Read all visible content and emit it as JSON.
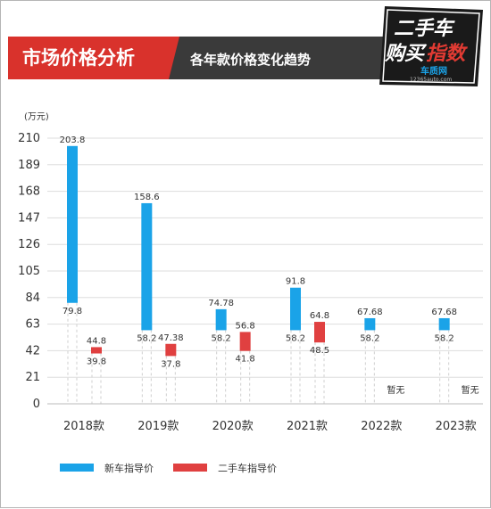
{
  "header": {
    "badge_title": "市场价格分析",
    "subtitle": "各年款价格变化趋势",
    "logo_line1": "二手车",
    "logo_line2a": "购买",
    "logo_line2b": "指数",
    "logo_site": "车质网",
    "logo_url": "12365auto.com"
  },
  "colors": {
    "header_bg": "#3a3a3a",
    "badge_red": "#d9322c",
    "new_car": "#1aa3e8",
    "used_car": "#e04040",
    "grid": "#dddddd"
  },
  "chart_data": {
    "type": "bar",
    "unit_label": "(万元)",
    "categories": [
      "2018款",
      "2019款",
      "2020款",
      "2021款",
      "2022款",
      "2023款"
    ],
    "yticks": [
      "0",
      "21",
      "42",
      "63",
      "84",
      "105",
      "126",
      "147",
      "168",
      "189",
      "210"
    ],
    "ylim": [
      0,
      210
    ],
    "series": [
      {
        "name": "新车指导价",
        "color": "#1aa3e8",
        "ranges": [
          [
            79.8,
            203.8
          ],
          [
            58.2,
            158.6
          ],
          [
            58.2,
            74.78
          ],
          [
            58.2,
            91.8
          ],
          [
            58.2,
            67.68
          ],
          [
            58.2,
            67.68
          ]
        ],
        "high_labels": [
          "203.8",
          "158.6",
          "74.78",
          "91.8",
          "67.68",
          "67.68"
        ],
        "low_labels": [
          "79.8",
          "58.2",
          "58.2",
          "58.2",
          "58.2",
          "58.2"
        ]
      },
      {
        "name": "二手车指导价",
        "color": "#e04040",
        "ranges": [
          [
            39.8,
            44.8
          ],
          [
            37.8,
            47.38
          ],
          [
            41.8,
            56.8
          ],
          [
            48.5,
            64.8
          ],
          null,
          null
        ],
        "high_labels": [
          "44.8",
          "47.38",
          "56.8",
          "64.8",
          "",
          ""
        ],
        "low_labels": [
          "39.8",
          "37.8",
          "41.8",
          "48.5",
          "",
          ""
        ],
        "missing_label": "暂无"
      }
    ],
    "legend_position": "bottom-left"
  }
}
